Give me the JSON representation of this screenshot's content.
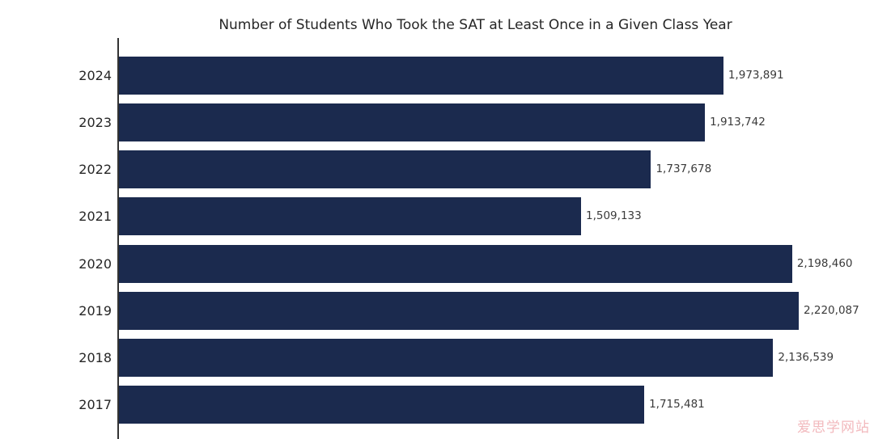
{
  "chart_data": {
    "type": "bar",
    "orientation": "horizontal",
    "title": "Number of Students Who Took the SAT at Least Once in a Given Class Year",
    "categories": [
      "2024",
      "2023",
      "2022",
      "2021",
      "2020",
      "2019",
      "2018",
      "2017"
    ],
    "values": [
      1973891,
      1913742,
      1737678,
      1509133,
      2198460,
      2220087,
      2136539,
      1715481
    ],
    "value_labels": [
      "1,973,891",
      "1,913,742",
      "1,737,678",
      "1,509,133",
      "2,198,460",
      "2,220,087",
      "2,136,539",
      "1,715,481"
    ],
    "xlabel": "",
    "ylabel": "",
    "xlim": [
      0,
      2220087
    ],
    "grid": false,
    "legend_position": "none",
    "bar_color": "#1b2a4e",
    "axis_color": "#333333",
    "label_color": "#3a3a3a"
  },
  "watermark": {
    "text": "爱思学网站",
    "color": "#f2b9bd"
  }
}
